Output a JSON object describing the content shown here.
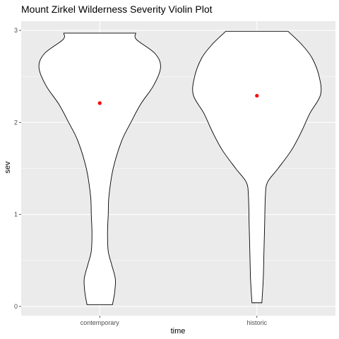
{
  "chart_data": {
    "type": "violin",
    "title": "Mount Zirkel Wilderness Severity Violin Plot",
    "xlabel": "time",
    "ylabel": "sev",
    "categories": [
      "contemporary",
      "historic"
    ],
    "ylim": [
      -0.1,
      3.1
    ],
    "yticks": [
      0,
      1,
      2,
      3
    ],
    "grid": true,
    "legend": "none",
    "colors": {
      "panel_background": "#ebebeb",
      "grid_line": "#ffffff",
      "violin_fill": "#ffffff",
      "violin_outline": "#000000",
      "mean_point": "#ff0000",
      "tick_text": "#4d4d4d"
    },
    "series": [
      {
        "category": "contemporary",
        "mean": 2.21,
        "range": [
          0.02,
          2.97
        ],
        "density_profile": [
          {
            "y": 0.02,
            "half_width": 0.18
          },
          {
            "y": 0.15,
            "half_width": 0.21
          },
          {
            "y": 0.3,
            "half_width": 0.22
          },
          {
            "y": 0.45,
            "half_width": 0.17
          },
          {
            "y": 0.6,
            "half_width": 0.12
          },
          {
            "y": 0.8,
            "half_width": 0.11
          },
          {
            "y": 1.0,
            "half_width": 0.12
          },
          {
            "y": 1.2,
            "half_width": 0.13
          },
          {
            "y": 1.5,
            "half_width": 0.19
          },
          {
            "y": 1.8,
            "half_width": 0.31
          },
          {
            "y": 2.0,
            "half_width": 0.44
          },
          {
            "y": 2.2,
            "half_width": 0.58
          },
          {
            "y": 2.4,
            "half_width": 0.76
          },
          {
            "y": 2.6,
            "half_width": 0.86
          },
          {
            "y": 2.75,
            "half_width": 0.78
          },
          {
            "y": 2.9,
            "half_width": 0.52
          },
          {
            "y": 2.97,
            "half_width": 0.51
          }
        ]
      },
      {
        "category": "historic",
        "mean": 2.29,
        "range": [
          0.04,
          2.99
        ],
        "density_profile": [
          {
            "y": 0.04,
            "half_width": 0.07
          },
          {
            "y": 0.3,
            "half_width": 0.09
          },
          {
            "y": 0.6,
            "half_width": 0.1
          },
          {
            "y": 0.9,
            "half_width": 0.11
          },
          {
            "y": 1.2,
            "half_width": 0.12
          },
          {
            "y": 1.35,
            "half_width": 0.15
          },
          {
            "y": 1.5,
            "half_width": 0.3
          },
          {
            "y": 1.7,
            "half_width": 0.49
          },
          {
            "y": 1.9,
            "half_width": 0.63
          },
          {
            "y": 2.1,
            "half_width": 0.75
          },
          {
            "y": 2.3,
            "half_width": 0.9
          },
          {
            "y": 2.5,
            "half_width": 0.88
          },
          {
            "y": 2.7,
            "half_width": 0.78
          },
          {
            "y": 2.85,
            "half_width": 0.63
          },
          {
            "y": 2.99,
            "half_width": 0.44
          }
        ]
      }
    ]
  }
}
